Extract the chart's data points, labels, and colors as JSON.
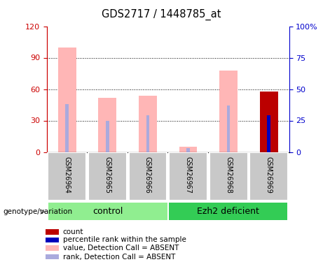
{
  "title": "GDS2717 / 1448785_at",
  "samples": [
    "GSM26964",
    "GSM26965",
    "GSM26966",
    "GSM26967",
    "GSM26968",
    "GSM26969"
  ],
  "group_labels": [
    "control",
    "Ezh2 deficient"
  ],
  "value_bars": [
    100,
    52,
    54,
    5,
    78,
    0
  ],
  "rank_bars_pct": [
    38,
    25,
    29,
    3,
    37,
    0
  ],
  "count_bars": [
    0,
    0,
    0,
    0,
    0,
    58
  ],
  "count_rank_pct": [
    0,
    0,
    0,
    0,
    0,
    29
  ],
  "value_color": "#FFB6B6",
  "rank_color": "#AAAADD",
  "count_color": "#BB0000",
  "count_rank_color": "#0000BB",
  "left_axis_color": "#CC0000",
  "right_axis_color": "#0000CC",
  "left_yticks": [
    0,
    30,
    60,
    90,
    120
  ],
  "right_yticks": [
    0,
    25,
    50,
    75,
    100
  ],
  "right_ytick_labels": [
    "0",
    "25",
    "50",
    "75",
    "100%"
  ],
  "ylim_max": 120,
  "bg_color": "#C8C8C8",
  "control_color": "#90EE90",
  "ezh2_color": "#33CC55",
  "legend_items": [
    {
      "color": "#BB0000",
      "label": "count"
    },
    {
      "color": "#0000BB",
      "label": "percentile rank within the sample"
    },
    {
      "color": "#FFB6B6",
      "label": "value, Detection Call = ABSENT"
    },
    {
      "color": "#AAAADD",
      "label": "rank, Detection Call = ABSENT"
    }
  ]
}
